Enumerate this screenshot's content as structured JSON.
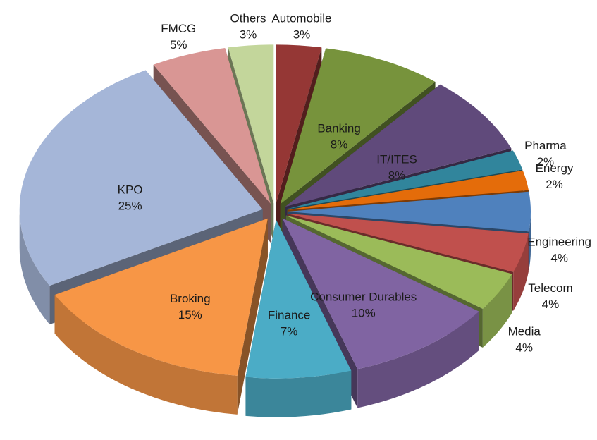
{
  "chart_data": {
    "type": "pie",
    "categories": [
      "Automobile",
      "Banking",
      "IT/ITES",
      "Pharma",
      "Energy",
      "Engineering",
      "Telecom",
      "Media",
      "Consumer Durables",
      "Finance",
      "Broking",
      "KPO",
      "FMCG",
      "Others"
    ],
    "values": [
      3,
      8,
      8,
      2,
      2,
      4,
      4,
      4,
      10,
      7,
      15,
      25,
      5,
      3
    ],
    "value_labels": [
      "3%",
      "8%",
      "8%",
      "2%",
      "2%",
      "4%",
      "4%",
      "4%",
      "10%",
      "7%",
      "15%",
      "25%",
      "5%",
      "3%"
    ],
    "colors": [
      "#953735",
      "#77933c",
      "#604a7b",
      "#31859c",
      "#e46c0a",
      "#4f81bd",
      "#c0504d",
      "#9bbb59",
      "#8064a2",
      "#4bacc6",
      "#f79646",
      "#a5b6d8",
      "#d99694",
      "#c3d69b"
    ]
  }
}
